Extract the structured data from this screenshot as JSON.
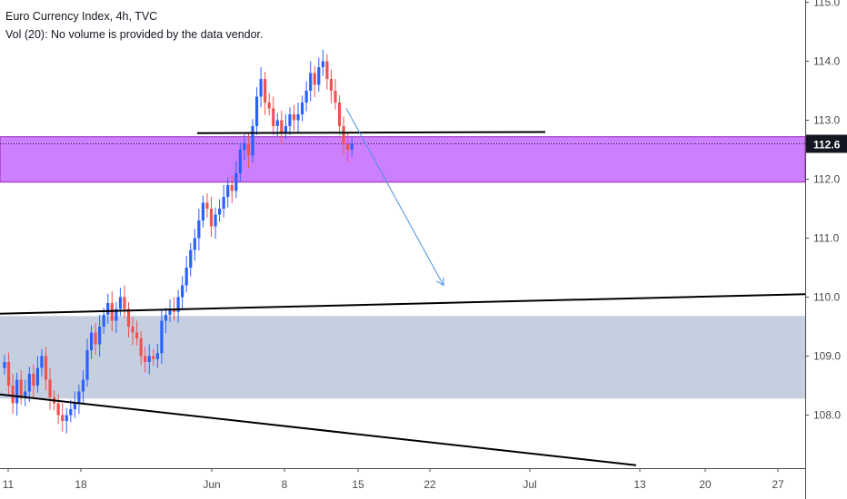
{
  "chart_data": {
    "type": "candlestick",
    "title": "Euro Currency Index, 4h, TVC",
    "subtitle": "Vol (20): No volume is provided by the data vendor.",
    "y_axis": {
      "ticks": [
        108.0,
        109.0,
        110.0,
        111.0,
        112.0,
        113.0,
        114.0,
        115.0
      ],
      "range": [
        107.15,
        115.1
      ],
      "current_price_label": "112.6",
      "current_price": 112.6
    },
    "x_axis": {
      "tick_labels": [
        "11",
        "18",
        "Jun",
        "8",
        "15",
        "22",
        "Jul",
        "13",
        "20",
        "27"
      ]
    },
    "zones": [
      {
        "name": "resistance-zone",
        "y_from": 111.95,
        "y_to": 112.72,
        "color": "#cc80ff"
      },
      {
        "name": "support-zone",
        "y_from": 108.28,
        "y_to": 109.68,
        "color": "#c5cfe0"
      }
    ],
    "trend_lines": [
      {
        "name": "horizontal-line",
        "from": [
          217,
          112.78
        ],
        "to": [
          600,
          112.8
        ],
        "color": "#000000"
      },
      {
        "name": "support-trend-line",
        "from": [
          0,
          109.72
        ],
        "to": [
          886,
          110.05
        ],
        "color": "#000000"
      },
      {
        "name": "lower-trend-line",
        "from": [
          0,
          108.35
        ],
        "to": [
          700,
          107.15
        ],
        "color": "#000000"
      }
    ],
    "projection_arrow": {
      "from": [
        381,
        113.2
      ],
      "to": [
        488,
        110.2
      ],
      "color": "#4a90e2"
    },
    "colors": {
      "up": "#2962ff",
      "down": "#ef5350",
      "price_tag": "#131722"
    }
  }
}
